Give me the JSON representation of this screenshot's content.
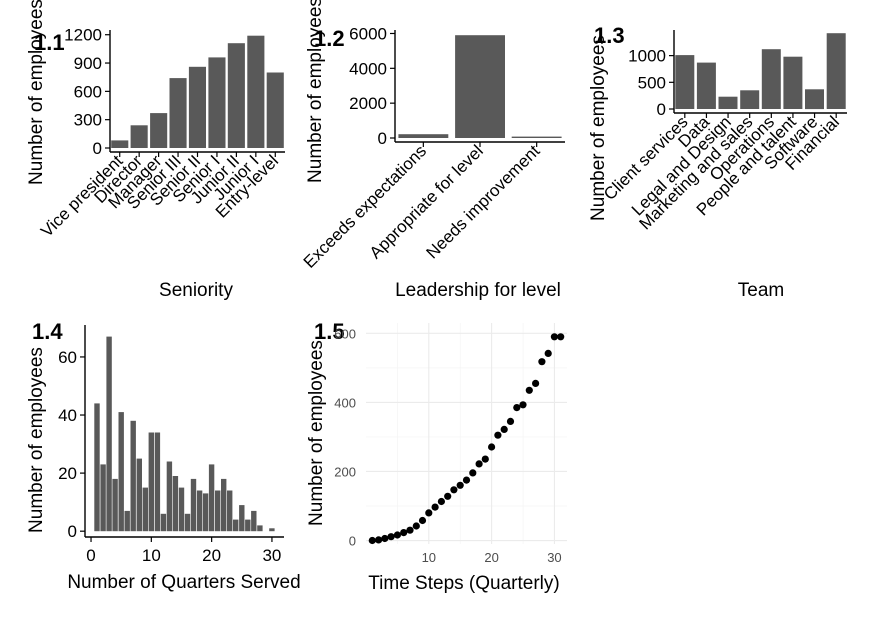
{
  "colors": {
    "bar": "#595959",
    "point": "#000000",
    "axis": "#000000"
  },
  "chart_data": [
    {
      "panel_label": "1.1",
      "type": "bar",
      "xlabel": "Seniority",
      "ylabel": "Number of employees",
      "categories": [
        "Vice president",
        "Director",
        "Manager",
        "Senior III",
        "Senior II",
        "Senior I",
        "Junior II",
        "Junior I",
        "Entry-level"
      ],
      "values": [
        80,
        240,
        370,
        740,
        860,
        960,
        1110,
        1190,
        800
      ],
      "ylim": [
        0,
        1250
      ],
      "yticks": [
        0,
        300,
        600,
        900,
        1200
      ],
      "grid": false
    },
    {
      "panel_label": "1.2",
      "type": "bar",
      "xlabel": "Leadership for level",
      "ylabel": "Number of employees",
      "categories": [
        "Exceeds expectations",
        "Appropriate for level",
        "Needs improvement"
      ],
      "values": [
        220,
        5900,
        80
      ],
      "ylim": [
        0,
        6200
      ],
      "yticks": [
        0,
        2000,
        4000,
        6000
      ],
      "grid": false
    },
    {
      "panel_label": "1.3",
      "type": "bar",
      "xlabel": "Team",
      "ylabel": "Number of employees",
      "categories": [
        "Client services",
        "Data",
        "Legal and Design",
        "Marketing and sales",
        "Operations",
        "People and talent",
        "Software",
        "Financial"
      ],
      "values": [
        1010,
        870,
        230,
        350,
        1120,
        980,
        370,
        1420
      ],
      "ylim": [
        0,
        1480
      ],
      "yticks": [
        0,
        500,
        1000
      ],
      "grid": false
    },
    {
      "panel_label": "1.4",
      "type": "bar",
      "xlabel": "Number of Quarters Served",
      "ylabel": "Number of employees",
      "x": [
        1,
        2,
        3,
        4,
        5,
        6,
        7,
        8,
        9,
        10,
        11,
        12,
        13,
        14,
        15,
        16,
        17,
        18,
        19,
        20,
        21,
        22,
        23,
        24,
        25,
        26,
        27,
        28,
        29,
        30,
        31
      ],
      "values": [
        44,
        23,
        67,
        18,
        41,
        7,
        38,
        25,
        15,
        34,
        34,
        6,
        24,
        19,
        15,
        6,
        18,
        14,
        13,
        23,
        14,
        18,
        14,
        4,
        9,
        4,
        7,
        2,
        0,
        1,
        0
      ],
      "xlim": [
        -1,
        32
      ],
      "ylim": [
        -2,
        71
      ],
      "xticks": [
        0,
        10,
        20,
        30
      ],
      "yticks": [
        0,
        20,
        40,
        60
      ],
      "grid": false
    },
    {
      "panel_label": "1.5",
      "type": "scatter",
      "xlabel": "Time Steps (Quarterly)",
      "ylabel": "Number of employees",
      "x": [
        1,
        2,
        3,
        4,
        5,
        6,
        7,
        8,
        9,
        10,
        11,
        12,
        13,
        14,
        15,
        16,
        17,
        18,
        19,
        20,
        21,
        22,
        23,
        24,
        25,
        26,
        27,
        28,
        29,
        30,
        31
      ],
      "values": [
        0,
        2,
        6,
        11,
        16,
        23,
        30,
        42,
        58,
        80,
        97,
        113,
        128,
        147,
        160,
        175,
        196,
        222,
        236,
        271,
        305,
        322,
        345,
        385,
        393,
        435,
        455,
        518,
        542,
        590,
        590
      ],
      "xlim": [
        0,
        32
      ],
      "ylim": [
        -10,
        630
      ],
      "xticks": [
        10,
        20,
        30
      ],
      "yticks": [
        0,
        200,
        400,
        600
      ],
      "grid": true
    }
  ]
}
